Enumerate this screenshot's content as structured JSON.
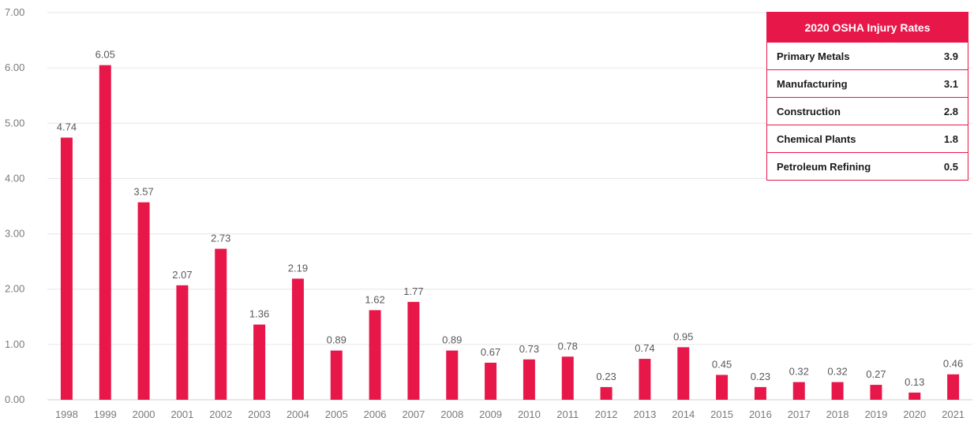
{
  "chart_data": {
    "type": "bar",
    "categories": [
      "1998",
      "1999",
      "2000",
      "2001",
      "2002",
      "2003",
      "2004",
      "2005",
      "2006",
      "2007",
      "2008",
      "2009",
      "2010",
      "2011",
      "2012",
      "2013",
      "2014",
      "2015",
      "2016",
      "2017",
      "2018",
      "2019",
      "2020",
      "2021"
    ],
    "values": [
      4.74,
      6.05,
      3.57,
      2.07,
      2.73,
      1.36,
      2.19,
      0.89,
      1.62,
      1.77,
      0.89,
      0.67,
      0.73,
      0.78,
      0.23,
      0.74,
      0.95,
      0.45,
      0.23,
      0.32,
      0.32,
      0.27,
      0.13,
      0.46
    ],
    "value_labels": [
      "4.74",
      "6.05",
      "3.57",
      "2.07",
      "2.73",
      "1.36",
      "2.19",
      "0.89",
      "1.62",
      "1.77",
      "0.89",
      "0.67",
      "0.73",
      "0.78",
      "0.23",
      "0.74",
      "0.95",
      "0.45",
      "0.23",
      "0.32",
      "0.32",
      "0.27",
      "0.13",
      "0.46"
    ],
    "ylim": [
      0,
      7
    ],
    "yticks": [
      "0.00",
      "1.00",
      "2.00",
      "3.00",
      "4.00",
      "5.00",
      "6.00",
      "7.00"
    ],
    "grid": true,
    "bar_color": "#e8174a"
  },
  "inset_table": {
    "title": "2020 OSHA Injury Rates",
    "header_color": "#e8174a",
    "rows": [
      {
        "label": "Primary Metals",
        "value": "3.9"
      },
      {
        "label": "Manufacturing",
        "value": "3.1"
      },
      {
        "label": "Construction",
        "value": "2.8"
      },
      {
        "label": "Chemical Plants",
        "value": "1.8"
      },
      {
        "label": "Petroleum Refining",
        "value": "0.5"
      }
    ]
  }
}
